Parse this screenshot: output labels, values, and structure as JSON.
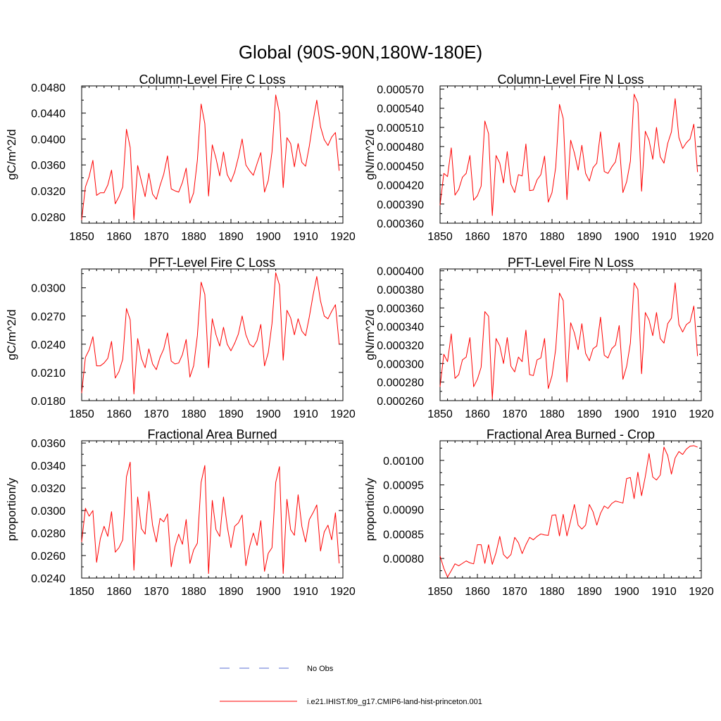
{
  "figure": {
    "title": "Global (90S-90N,180W-180E)"
  },
  "legend": {
    "items": [
      {
        "label": "No Obs",
        "color": "#5b6fd6",
        "style": "dashed"
      },
      {
        "label": "i.e21.IHIST.f09_g17.CMIP6-land-hist-princeton.001",
        "color": "#ff0000",
        "style": "solid"
      }
    ]
  },
  "chart_data": [
    {
      "type": "line",
      "title": "Column-Level Fire C Loss",
      "ylabel": "gC/m^2/d",
      "xlim": [
        1850,
        1920
      ],
      "ylim": [
        0.027,
        0.0482
      ],
      "xticks": [
        1850,
        1860,
        1870,
        1880,
        1890,
        1900,
        1910,
        1920
      ],
      "xtick_labels": [
        "1850",
        "1860",
        "1870",
        "1880",
        "1890",
        "1900",
        "1910",
        "1920"
      ],
      "yticks": [
        0.028,
        0.032,
        0.036,
        0.04,
        0.044,
        0.048
      ],
      "ytick_labels": [
        "0.0280",
        "0.0320",
        "0.0360",
        "0.0400",
        "0.0440",
        "0.0480"
      ],
      "series": [
        {
          "color": "#ff0000",
          "x_start": 1850,
          "values": [
            0.0275,
            0.0326,
            0.0342,
            0.0367,
            0.0313,
            0.0317,
            0.0317,
            0.0329,
            0.0352,
            0.03,
            0.0311,
            0.0326,
            0.0415,
            0.0387,
            0.0275,
            0.0359,
            0.0335,
            0.0311,
            0.0347,
            0.0315,
            0.0307,
            0.0328,
            0.0346,
            0.0374,
            0.0323,
            0.032,
            0.0318,
            0.0333,
            0.0355,
            0.0301,
            0.0317,
            0.0367,
            0.0454,
            0.0424,
            0.0312,
            0.0391,
            0.037,
            0.0343,
            0.038,
            0.0345,
            0.0334,
            0.0349,
            0.0372,
            0.04,
            0.036,
            0.0351,
            0.0344,
            0.0362,
            0.0379,
            0.0318,
            0.0336,
            0.038,
            0.0468,
            0.044,
            0.0325,
            0.0402,
            0.0393,
            0.0357,
            0.0393,
            0.0364,
            0.0358,
            0.0389,
            0.0427,
            0.046,
            0.0419,
            0.0399,
            0.039,
            0.0403,
            0.041,
            0.0351
          ]
        }
      ]
    },
    {
      "type": "line",
      "title": "Column-Level Fire N Loss",
      "ylabel": "gN/m^2/d",
      "xlim": [
        1850,
        1920
      ],
      "ylim": [
        0.00036,
        0.000575
      ],
      "xticks": [
        1850,
        1860,
        1870,
        1880,
        1890,
        1900,
        1910,
        1920
      ],
      "xtick_labels": [
        "1850",
        "1860",
        "1870",
        "1880",
        "1890",
        "1900",
        "1910",
        "1920"
      ],
      "yticks": [
        0.00036,
        0.00039,
        0.00042,
        0.00045,
        0.00048,
        0.00051,
        0.00054,
        0.00057
      ],
      "ytick_labels": [
        "0.000360",
        "0.000390",
        "0.000420",
        "0.000450",
        "0.000480",
        "0.000510",
        "0.000540",
        "0.000570"
      ],
      "series": [
        {
          "color": "#ff0000",
          "x_start": 1850,
          "values": [
            0.000388,
            0.000438,
            0.000433,
            0.000478,
            0.000404,
            0.000413,
            0.000432,
            0.000438,
            0.000466,
            0.000396,
            0.000403,
            0.000418,
            0.00052,
            0.0005,
            0.000372,
            0.000466,
            0.000454,
            0.000423,
            0.000472,
            0.000421,
            0.000408,
            0.000436,
            0.000434,
            0.000484,
            0.000411,
            0.000412,
            0.000428,
            0.000436,
            0.000465,
            0.000393,
            0.000408,
            0.000448,
            0.000546,
            0.000524,
            0.000397,
            0.00049,
            0.00047,
            0.000443,
            0.000482,
            0.000438,
            0.000426,
            0.000447,
            0.000454,
            0.000503,
            0.000441,
            0.000438,
            0.000448,
            0.000456,
            0.000486,
            0.000408,
            0.000425,
            0.000457,
            0.000562,
            0.000548,
            0.00041,
            0.000504,
            0.00049,
            0.00046,
            0.00051,
            0.000464,
            0.000454,
            0.000485,
            0.000503,
            0.000555,
            0.000494,
            0.000477,
            0.000486,
            0.000492,
            0.000515,
            0.00044
          ]
        }
      ]
    },
    {
      "type": "line",
      "title": "PFT-Level Fire C Loss",
      "ylabel": "gC/m^2/d",
      "xlim": [
        1850,
        1920
      ],
      "ylim": [
        0.018,
        0.032
      ],
      "xticks": [
        1850,
        1860,
        1870,
        1880,
        1890,
        1900,
        1910,
        1920
      ],
      "xtick_labels": [
        "1850",
        "1860",
        "1870",
        "1880",
        "1890",
        "1900",
        "1910",
        "1920"
      ],
      "yticks": [
        0.018,
        0.021,
        0.024,
        0.027,
        0.03
      ],
      "ytick_labels": [
        "0.0180",
        "0.0210",
        "0.0240",
        "0.0270",
        "0.0300"
      ],
      "series": [
        {
          "color": "#ff0000",
          "x_start": 1850,
          "values": [
            0.0188,
            0.0226,
            0.0234,
            0.0248,
            0.0217,
            0.0217,
            0.022,
            0.0225,
            0.0243,
            0.0204,
            0.0211,
            0.0224,
            0.0278,
            0.0266,
            0.0187,
            0.0246,
            0.0225,
            0.0215,
            0.0235,
            0.0219,
            0.0213,
            0.0226,
            0.0235,
            0.0252,
            0.0222,
            0.0219,
            0.022,
            0.0229,
            0.0245,
            0.0205,
            0.0217,
            0.0249,
            0.0306,
            0.0293,
            0.0215,
            0.0267,
            0.025,
            0.0238,
            0.0258,
            0.024,
            0.0233,
            0.0241,
            0.0251,
            0.027,
            0.025,
            0.024,
            0.0237,
            0.0244,
            0.0261,
            0.0217,
            0.0231,
            0.0262,
            0.0316,
            0.0303,
            0.0223,
            0.0276,
            0.0268,
            0.025,
            0.0267,
            0.0254,
            0.0249,
            0.0269,
            0.0292,
            0.0312,
            0.0286,
            0.027,
            0.0267,
            0.0275,
            0.0282,
            0.024
          ]
        }
      ]
    },
    {
      "type": "line",
      "title": "PFT-Level Fire N Loss",
      "ylabel": "gN/m^2/d",
      "xlim": [
        1850,
        1920
      ],
      "ylim": [
        0.00026,
        0.000402
      ],
      "xticks": [
        1850,
        1860,
        1870,
        1880,
        1890,
        1900,
        1910,
        1920
      ],
      "xtick_labels": [
        "1850",
        "1860",
        "1870",
        "1880",
        "1890",
        "1900",
        "1910",
        "1920"
      ],
      "yticks": [
        0.00026,
        0.00028,
        0.0003,
        0.00032,
        0.00034,
        0.00036,
        0.00038,
        0.0004
      ],
      "ytick_labels": [
        "0.000260",
        "0.000280",
        "0.000300",
        "0.000320",
        "0.000340",
        "0.000360",
        "0.000380",
        "0.000400"
      ],
      "series": [
        {
          "color": "#ff0000",
          "x_start": 1850,
          "values": [
            0.000275,
            0.00031,
            0.000302,
            0.000332,
            0.000284,
            0.000288,
            0.000304,
            0.000307,
            0.000328,
            0.000275,
            0.000283,
            0.000296,
            0.000356,
            0.000351,
            0.000262,
            0.000327,
            0.000319,
            0.0003,
            0.000328,
            0.000297,
            0.000291,
            0.000307,
            0.000302,
            0.000336,
            0.000288,
            0.000287,
            0.000304,
            0.000306,
            0.000327,
            0.000273,
            0.000287,
            0.000316,
            0.000376,
            0.000368,
            0.00028,
            0.000344,
            0.000333,
            0.000315,
            0.000343,
            0.000311,
            0.000303,
            0.000316,
            0.000319,
            0.00035,
            0.000309,
            0.000306,
            0.000316,
            0.00032,
            0.000341,
            0.000283,
            0.000297,
            0.000322,
            0.000387,
            0.00038,
            0.000289,
            0.000355,
            0.000347,
            0.00033,
            0.000355,
            0.000327,
            0.000322,
            0.000343,
            0.000349,
            0.000387,
            0.000342,
            0.000334,
            0.000342,
            0.000345,
            0.000362,
            0.000308
          ]
        }
      ]
    },
    {
      "type": "line",
      "title": "Fractional Area Burned",
      "ylabel": "proportion/y",
      "xlim": [
        1850,
        1920
      ],
      "ylim": [
        0.024,
        0.0362
      ],
      "xticks": [
        1850,
        1860,
        1870,
        1880,
        1890,
        1900,
        1910,
        1920
      ],
      "xtick_labels": [
        "1850",
        "1860",
        "1870",
        "1880",
        "1890",
        "1900",
        "1910",
        "1920"
      ],
      "yticks": [
        0.024,
        0.026,
        0.028,
        0.03,
        0.032,
        0.034,
        0.036
      ],
      "ytick_labels": [
        "0.0240",
        "0.0260",
        "0.0280",
        "0.0300",
        "0.0320",
        "0.0340",
        "0.0360"
      ],
      "series": [
        {
          "color": "#ff0000",
          "x_start": 1850,
          "values": [
            0.0272,
            0.0302,
            0.0295,
            0.03,
            0.0254,
            0.0275,
            0.0286,
            0.0277,
            0.0299,
            0.0263,
            0.0267,
            0.0274,
            0.033,
            0.0343,
            0.0247,
            0.0312,
            0.0284,
            0.0279,
            0.0317,
            0.0287,
            0.0272,
            0.0293,
            0.029,
            0.0297,
            0.025,
            0.0268,
            0.0279,
            0.027,
            0.0292,
            0.0253,
            0.0265,
            0.0271,
            0.0325,
            0.034,
            0.0244,
            0.0309,
            0.0283,
            0.0277,
            0.0312,
            0.0286,
            0.0267,
            0.0286,
            0.0289,
            0.0296,
            0.0251,
            0.0268,
            0.028,
            0.0269,
            0.0291,
            0.0246,
            0.0262,
            0.0267,
            0.0325,
            0.0339,
            0.0244,
            0.031,
            0.0283,
            0.0278,
            0.0314,
            0.0286,
            0.0272,
            0.0292,
            0.0298,
            0.0305,
            0.0264,
            0.0281,
            0.0287,
            0.0274,
            0.0298,
            0.0253
          ]
        }
      ]
    },
    {
      "type": "line",
      "title": "Fractional Area Burned - Crop",
      "ylabel": "proportion/y",
      "xlim": [
        1850,
        1920
      ],
      "ylim": [
        0.00076,
        0.00104
      ],
      "xticks": [
        1850,
        1860,
        1870,
        1880,
        1890,
        1900,
        1910,
        1920
      ],
      "xtick_labels": [
        "1850",
        "1860",
        "1870",
        "1880",
        "1890",
        "1900",
        "1910",
        "1920"
      ],
      "yticks": [
        0.0008,
        0.00085,
        0.0009,
        0.00095,
        0.001
      ],
      "ytick_labels": [
        "0.00080",
        "0.00085",
        "0.00090",
        "0.00095",
        "0.00100"
      ],
      "series": [
        {
          "color": "#ff0000",
          "x_start": 1850,
          "values": [
            0.000805,
            0.00078,
            0.000762,
            0.000775,
            0.000789,
            0.000785,
            0.00079,
            0.000795,
            0.000791,
            0.000789,
            0.000828,
            0.000828,
            0.00079,
            0.000828,
            0.000788,
            0.000812,
            0.000845,
            0.000808,
            0.0008,
            0.000808,
            0.000843,
            0.000832,
            0.00081,
            0.000828,
            0.000843,
            0.000838,
            0.000845,
            0.00085,
            0.000848,
            0.000847,
            0.000888,
            0.000889,
            0.000846,
            0.00089,
            0.000846,
            0.000877,
            0.00091,
            0.000868,
            0.00086,
            0.000868,
            0.00091,
            0.000895,
            0.000868,
            0.000892,
            0.000907,
            0.000902,
            0.000912,
            0.000917,
            0.000915,
            0.000913,
            0.000963,
            0.000965,
            0.000922,
            0.000976,
            0.000928,
            0.000967,
            0.001014,
            0.000966,
            0.00096,
            0.00097,
            0.001027,
            0.00101,
            0.000972,
            0.001005,
            0.001018,
            0.001012,
            0.001023,
            0.001029,
            0.00103,
            0.001027
          ]
        }
      ]
    }
  ]
}
